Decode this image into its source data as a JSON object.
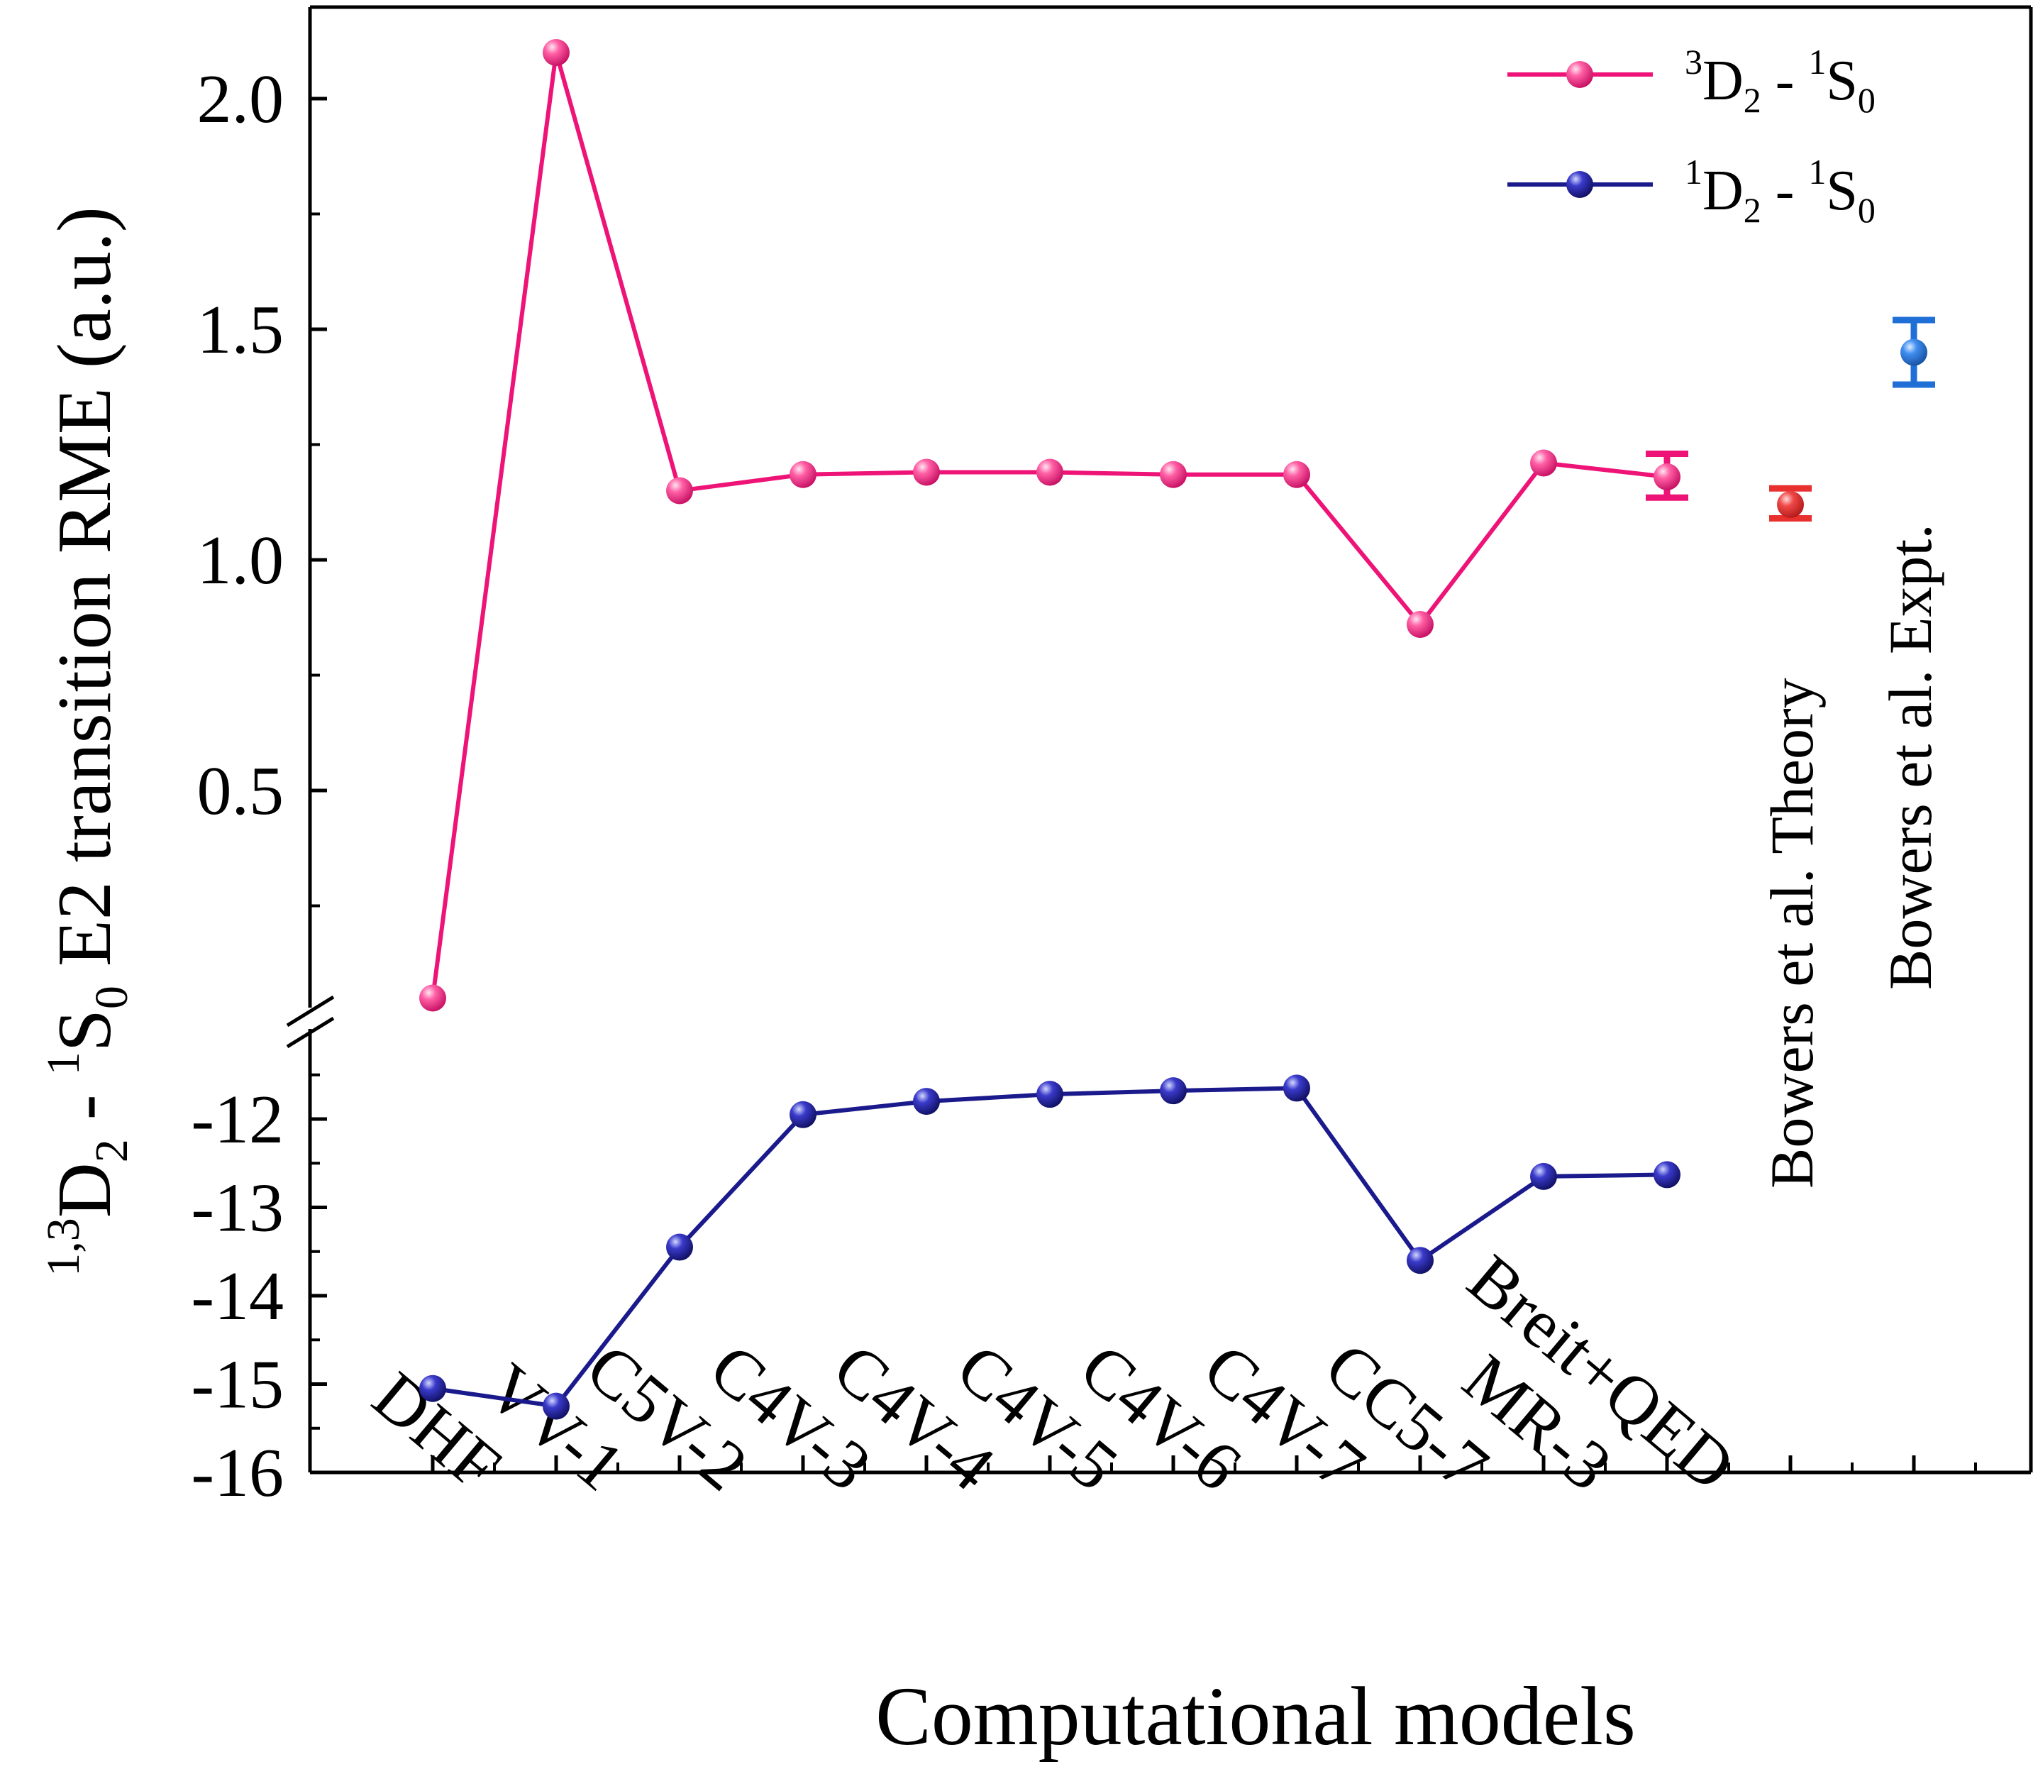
{
  "chart_data": {
    "type": "line",
    "xlabel": "Computational models",
    "ylabel": {
      "pre_sup": "1,3",
      "d": "D",
      "d_sub": "2",
      "dash": " - ",
      "s_sup": "1",
      "s": "S",
      "s_sub": "0",
      "rest": " E2 transition RME (a.u.)"
    },
    "categories": [
      "DHF",
      "VV-1",
      "C5V-2",
      "C4V-3",
      "C4V-4",
      "C4V-5",
      "C4V-6",
      "C4V-7",
      "CC5-7",
      "MR-3",
      "Breit+QED",
      "",
      ""
    ],
    "upper_axis": {
      "ylim": [
        0.1,
        2.2
      ],
      "ticks": [
        2.0,
        1.5,
        1.0,
        0.5
      ],
      "tick_labels": [
        "2.0",
        "1.5",
        "1.0",
        "0.5"
      ]
    },
    "lower_axis": {
      "ylim": [
        -16,
        -11
      ],
      "ticks": [
        -12,
        -13,
        -14,
        -15,
        -16
      ],
      "tick_labels": [
        "-12",
        "-13",
        "-14",
        "-15",
        "-16"
      ]
    },
    "series": [
      {
        "name": "3D2 - 1S0",
        "legend": {
          "sup1": "3",
          "main1": "D",
          "sub1": "2",
          "dash": " - ",
          "sup2": "1",
          "main2": "S",
          "sub2": "0"
        },
        "axis": "upper",
        "color": "#ee1477",
        "x": [
          0,
          1,
          2,
          3,
          4,
          5,
          6,
          7,
          8,
          9,
          10
        ],
        "values": [
          0.05,
          2.1,
          1.15,
          1.185,
          1.19,
          1.19,
          1.185,
          1.185,
          0.86,
          1.21,
          1.18
        ],
        "error_bars": [
          {
            "x": 10,
            "value": 1.18,
            "low": 1.135,
            "high": 1.23
          }
        ]
      },
      {
        "name": "1D2 - 1S0",
        "legend": {
          "sup1": "1",
          "main1": "D",
          "sub1": "2",
          "dash": " - ",
          "sup2": "1",
          "main2": "S",
          "sub2": "0"
        },
        "axis": "lower",
        "color": "#1a1a8c",
        "x": [
          0,
          1,
          2,
          3,
          4,
          5,
          6,
          7,
          8,
          9,
          10
        ],
        "values": [
          -15.05,
          -15.25,
          -13.45,
          -11.95,
          -11.8,
          -11.72,
          -11.68,
          -11.65,
          -13.6,
          -12.65,
          -12.63
        ]
      }
    ],
    "reference_points": [
      {
        "label": "Bowers et al. Theory",
        "x": 11,
        "value": 1.12,
        "low": 1.09,
        "high": 1.155,
        "color": "#e8302f"
      },
      {
        "label": "Bowers et al. Expt.",
        "x": 12,
        "value": 1.45,
        "low": 1.38,
        "high": 1.52,
        "color": "#1f6fd6"
      }
    ]
  }
}
